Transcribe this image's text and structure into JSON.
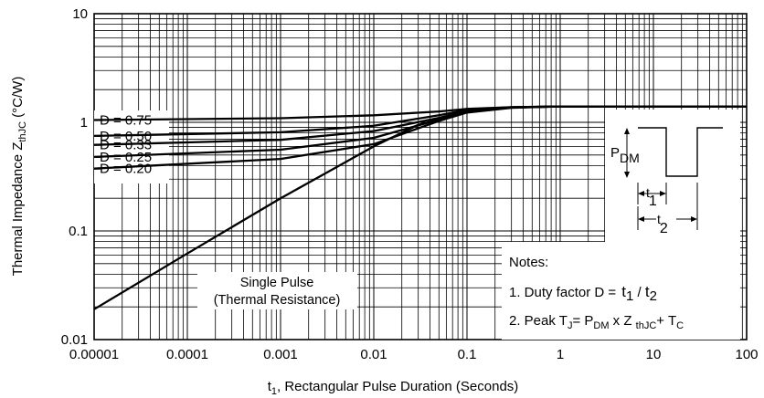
{
  "chart_data": {
    "type": "line",
    "xscale": "log",
    "yscale": "log",
    "xlim": [
      1e-05,
      100
    ],
    "ylim": [
      0.01,
      10
    ],
    "grid": true,
    "x_tick_labels": [
      "0.00001",
      "0.0001",
      "0.001",
      "0.01",
      "0.1",
      "1",
      "10",
      "100"
    ],
    "y_tick_labels": [
      "0.01",
      "0.1",
      "1",
      "10"
    ],
    "xlabel": {
      "pre": "t",
      "sub": "1",
      "post": ", Rectangular Pulse Duration (Seconds)"
    },
    "ylabel": {
      "pre": "Thermal Impedance Z",
      "sub": "thJC",
      "post": " (°C/W)"
    },
    "series": [
      {
        "name": "D = 0.75",
        "x": [
          1e-05,
          0.001,
          0.01,
          0.05,
          0.1,
          0.3,
          1,
          100
        ],
        "y": [
          1.05,
          1.09,
          1.16,
          1.26,
          1.33,
          1.38,
          1.4,
          1.4
        ]
      },
      {
        "name": "D = 0.50",
        "x": [
          1e-05,
          0.001,
          0.01,
          0.05,
          0.1,
          0.3,
          1,
          100
        ],
        "y": [
          0.75,
          0.81,
          0.93,
          1.16,
          1.3,
          1.38,
          1.4,
          1.4
        ]
      },
      {
        "name": "D = 0.33",
        "x": [
          1e-05,
          0.001,
          0.01,
          0.05,
          0.1,
          0.3,
          1,
          100
        ],
        "y": [
          0.62,
          0.69,
          0.83,
          1.1,
          1.27,
          1.37,
          1.4,
          1.4
        ]
      },
      {
        "name": "D = 0.25",
        "x": [
          1e-05,
          0.001,
          0.01,
          0.05,
          0.1,
          0.3,
          1,
          100
        ],
        "y": [
          0.48,
          0.56,
          0.72,
          1.06,
          1.25,
          1.37,
          1.4,
          1.4
        ]
      },
      {
        "name": "D = 0.20",
        "x": [
          1e-05,
          0.001,
          0.01,
          0.05,
          0.1,
          0.3,
          1,
          100
        ],
        "y": [
          0.375,
          0.46,
          0.63,
          1.03,
          1.23,
          1.36,
          1.4,
          1.4
        ]
      },
      {
        "name": "Single Pulse",
        "x": [
          1e-05,
          0.0001,
          0.001,
          0.01,
          0.03,
          0.1,
          0.3,
          1,
          100
        ],
        "y": [
          0.019,
          0.062,
          0.2,
          0.6,
          0.95,
          1.25,
          1.37,
          1.4,
          1.4
        ]
      }
    ],
    "annotations": {
      "single_pulse": [
        "Single Pulse",
        "(Thermal Resistance)"
      ],
      "notes_title": "Notes:",
      "note1": {
        "text": "1. Duty factor D = ",
        "t1": "t",
        "t1_sub": "1",
        "slash": " / ",
        "t2": "t",
        "t2_sub": "2"
      },
      "note2": {
        "text": "2. Peak T",
        "j_sub": "J",
        "eq": "= P",
        "dm_sub": "DM",
        "x": " x Z ",
        "z_sub": "thJC",
        "plus": "+ T",
        "c_sub": "C"
      },
      "pulse_diagram": {
        "p": "P",
        "p_sub": "DM",
        "t1": "t",
        "t1_sub": "1",
        "t2": "t",
        "t2_sub": "2"
      }
    }
  }
}
